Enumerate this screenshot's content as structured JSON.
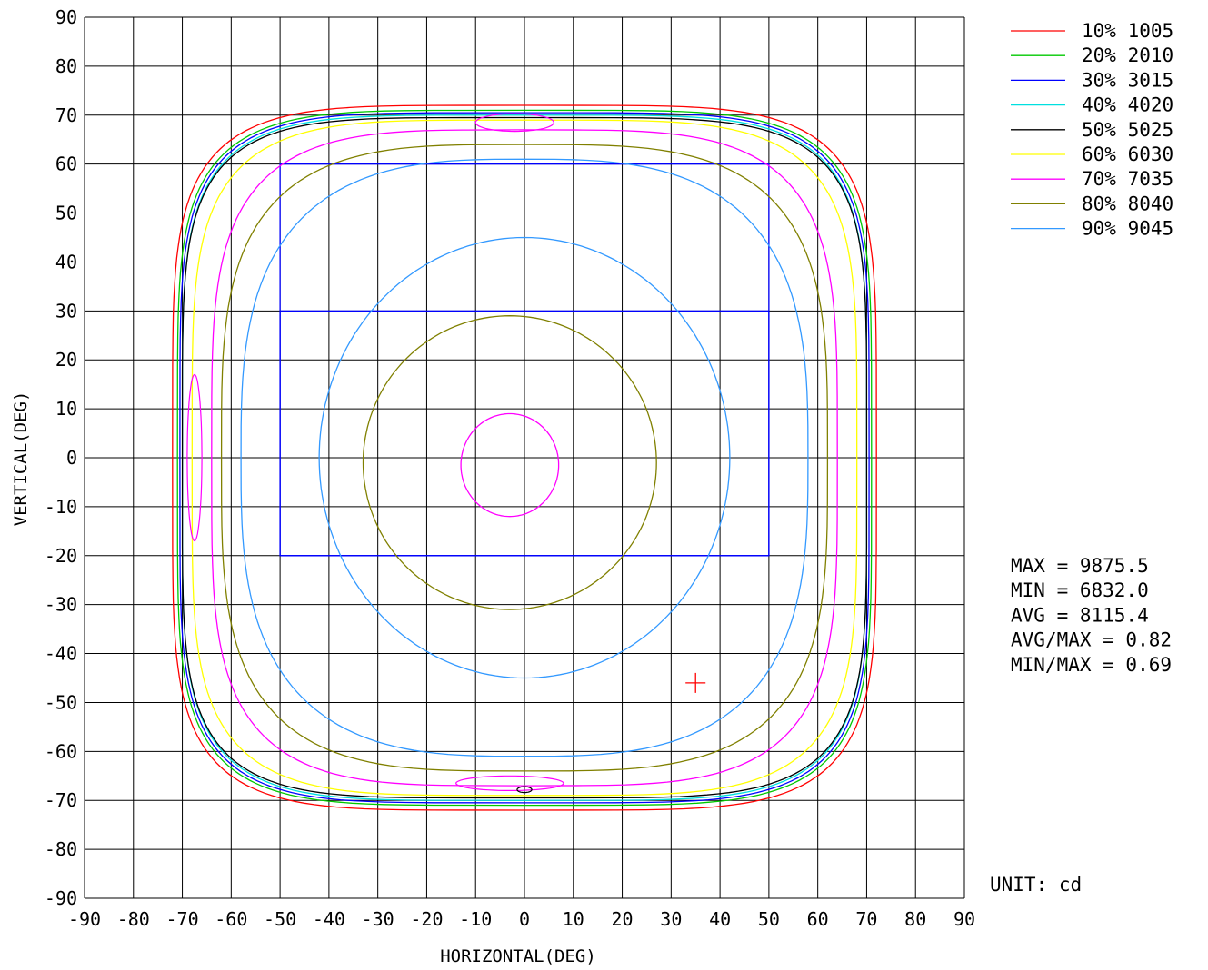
{
  "chart_data": {
    "type": "contour",
    "xlabel": "HORIZONTAL(DEG)",
    "ylabel": "VERTICAL(DEG)",
    "xlim": [
      -90,
      90
    ],
    "ylim": [
      -90,
      90
    ],
    "x_ticks": [
      -90,
      -80,
      -70,
      -60,
      -50,
      -40,
      -30,
      -20,
      -10,
      0,
      10,
      20,
      30,
      40,
      50,
      60,
      70,
      80,
      90
    ],
    "y_ticks": [
      90,
      80,
      70,
      60,
      50,
      40,
      30,
      20,
      10,
      0,
      -10,
      -20,
      -30,
      -40,
      -50,
      -60,
      -70,
      -80,
      -90
    ],
    "x_tick_labels": [
      "-90",
      "-80",
      "-70",
      "-60",
      "-50",
      "-40",
      "-30",
      "-20",
      "-10",
      "0",
      "10",
      "20",
      "30",
      "40",
      "50",
      "60",
      "70",
      "80",
      "90"
    ],
    "y_tick_labels": [
      "90",
      "80",
      "70",
      "60",
      "50",
      "40",
      "30",
      "20",
      "10",
      "0",
      "-10",
      "-20",
      "-30",
      "-40",
      "-50",
      "-60",
      "-70",
      "-80",
      "-90"
    ],
    "grid": true,
    "legend_position": "top-right",
    "series": [
      {
        "label": "10% 1005",
        "level": 1005,
        "color": "#ff0000",
        "cx": 0,
        "cy": 0,
        "a": 72,
        "b": 72,
        "n": 5
      },
      {
        "label": "20% 2010",
        "level": 2010,
        "color": "#00c800",
        "cx": 0,
        "cy": 0,
        "a": 71,
        "b": 71,
        "n": 5
      },
      {
        "label": "30% 3015",
        "level": 3015,
        "color": "#0000ff",
        "cx": 0,
        "cy": 0,
        "a": 70.5,
        "b": 70.5,
        "n": 5
      },
      {
        "label": "40% 4020",
        "level": 4020,
        "color": "#00e0e0",
        "cx": 0,
        "cy": 0,
        "a": 70,
        "b": 70,
        "n": 5
      },
      {
        "label": "50% 5025",
        "level": 5025,
        "color": "#000000",
        "cx": 0,
        "cy": 0,
        "a": 70,
        "b": 69.5,
        "n": 5
      },
      {
        "label": "60% 6030",
        "level": 6030,
        "color": "#ffff00",
        "cx": 0,
        "cy": 0,
        "a": 68,
        "b": 69,
        "n": 4.5
      },
      {
        "label": "70% 7035",
        "level": 7035,
        "color": "#ff00ff",
        "cx": 0,
        "cy": 0,
        "a": 64,
        "b": 67,
        "n": 4
      },
      {
        "label": "80% 8040",
        "level": 8040,
        "color": "#808000",
        "cx": 0,
        "cy": 0,
        "a": 62,
        "b": 64,
        "n": 3.5
      },
      {
        "label": "90% 9045",
        "level": 9045,
        "color": "#3399ff",
        "cx": 0,
        "cy": 0,
        "a": 58,
        "b": 61,
        "n": 3
      }
    ],
    "inner_contours": [
      {
        "level": 9045,
        "color": "#3399ff",
        "cx": 0,
        "cy": 0,
        "a": 42,
        "b": 45,
        "n": 2
      },
      {
        "level": 8040,
        "color": "#808000",
        "cx": -3,
        "cy": -1,
        "a": 30,
        "b": 30,
        "n": 2
      },
      {
        "level": 7035,
        "color": "#ff00ff",
        "cx": -3,
        "cy": -1.5,
        "a": 10,
        "b": 10.5,
        "n": 2
      }
    ],
    "small_loops": [
      {
        "color": "#ff00ff",
        "cx": -67.5,
        "cy": 0,
        "a": 1.5,
        "b": 17
      },
      {
        "color": "#ff00ff",
        "cx": -2,
        "cy": 68.5,
        "a": 8,
        "b": 1.8
      },
      {
        "color": "#ff00ff",
        "cx": -3,
        "cy": -66.5,
        "a": 11,
        "b": 1.5
      },
      {
        "color": "#000000",
        "cx": 0,
        "cy": -67.8,
        "a": 1.5,
        "b": 0.6
      }
    ],
    "rectangles": [
      {
        "color": "#0000ff",
        "x1": -50,
        "x2": 50,
        "y1": -20,
        "y2": 30
      },
      {
        "color": "#0000ff",
        "x1": -50,
        "x2": 50,
        "y1": -20,
        "y2": 60
      }
    ],
    "marker": {
      "x": 35,
      "y": -46,
      "color": "#ff0000"
    },
    "stats": [
      {
        "label": "MAX",
        "value": "9875.5"
      },
      {
        "label": "MIN",
        "value": "6832.0"
      },
      {
        "label": "AVG",
        "value": "8115.4"
      },
      {
        "label": "AVG/MAX",
        "value": "0.82"
      },
      {
        "label": "MIN/MAX",
        "value": "0.69"
      }
    ],
    "stat_lines": [
      "MAX = 9875.5",
      "MIN = 6832.0",
      "AVG = 8115.4",
      "AVG/MAX = 0.82",
      "MIN/MAX = 0.69"
    ],
    "unit": "UNIT: cd"
  }
}
